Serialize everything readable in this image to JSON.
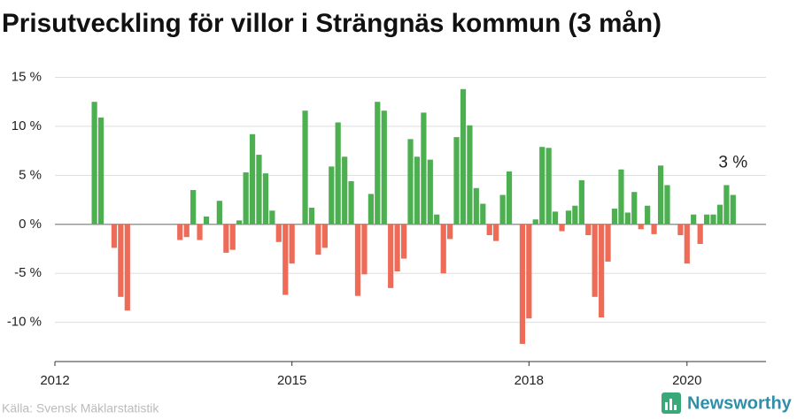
{
  "chart_data": {
    "type": "bar",
    "title": "Prisutveckling för villor i Strängnäs kommun (3 mån)",
    "x": [
      2012.5,
      2012.583,
      2012.667,
      2012.75,
      2012.833,
      2012.917,
      2013.0,
      2013.083,
      2013.167,
      2013.25,
      2013.333,
      2013.417,
      2013.5,
      2013.583,
      2013.667,
      2013.75,
      2013.833,
      2013.917,
      2014.0,
      2014.083,
      2014.167,
      2014.25,
      2014.333,
      2014.417,
      2014.5,
      2014.583,
      2014.667,
      2014.75,
      2014.833,
      2014.917,
      2015.0,
      2015.083,
      2015.167,
      2015.25,
      2015.333,
      2015.417,
      2015.5,
      2015.583,
      2015.667,
      2015.75,
      2015.833,
      2015.917,
      2016.0,
      2016.083,
      2016.167,
      2016.25,
      2016.333,
      2016.417,
      2016.5,
      2016.583,
      2016.667,
      2016.75,
      2016.833,
      2016.917,
      2017.0,
      2017.083,
      2017.167,
      2017.25,
      2017.333,
      2017.417,
      2017.5,
      2017.583,
      2017.667,
      2017.75,
      2017.833,
      2017.917,
      2018.0,
      2018.083,
      2018.167,
      2018.25,
      2018.333,
      2018.417,
      2018.5,
      2018.583,
      2018.667,
      2018.75,
      2018.833,
      2018.917,
      2019.0,
      2019.083,
      2019.167,
      2019.25,
      2019.333,
      2019.417,
      2019.5,
      2019.583,
      2019.667,
      2019.75,
      2019.833,
      2019.917,
      2020.0,
      2020.083,
      2020.167,
      2020.25,
      2020.333,
      2020.417,
      2020.5,
      2020.583
    ],
    "values": [
      12.5,
      10.9,
      null,
      -2.4,
      -7.4,
      -8.8,
      null,
      null,
      null,
      null,
      null,
      null,
      null,
      -1.6,
      -1.3,
      3.5,
      -1.6,
      0.8,
      null,
      2.4,
      -2.9,
      -2.6,
      0.4,
      5.3,
      9.2,
      7.1,
      5.2,
      1.4,
      -1.8,
      -7.2,
      -4.0,
      null,
      11.6,
      1.7,
      -3.1,
      -2.4,
      5.9,
      10.4,
      6.9,
      4.4,
      -7.3,
      -5.1,
      3.1,
      12.5,
      11.6,
      -6.5,
      -4.8,
      -3.5,
      8.7,
      6.9,
      11.4,
      6.6,
      1.0,
      -5.0,
      -1.5,
      8.9,
      13.8,
      10.1,
      3.7,
      2.1,
      -1.1,
      -1.7,
      3.0,
      5.4,
      null,
      -12.2,
      -9.6,
      0.5,
      7.9,
      7.8,
      1.3,
      -0.7,
      1.4,
      1.9,
      4.5,
      -1.1,
      -7.4,
      -9.5,
      -3.8,
      1.6,
      5.6,
      1.2,
      3.3,
      -0.5,
      1.9,
      -1.0,
      6.0,
      4.0,
      null,
      -1.1,
      -4.0,
      1.0,
      -2.0,
      1.0,
      1.0,
      2.0,
      4.0,
      3.0
    ],
    "positive_color": "#4caf50",
    "negative_color": "#ee6b58",
    "xlim": [
      2012,
      2021
    ],
    "xticks": [
      2012,
      2015,
      2018,
      2020
    ],
    "ylim": [
      -14,
      16
    ],
    "yticks": [
      {
        "value": -10,
        "label": "-10 %"
      },
      {
        "value": -5,
        "label": "-5 %"
      },
      {
        "value": 0,
        "label": "0 %"
      },
      {
        "value": 5,
        "label": "5 %"
      },
      {
        "value": 10,
        "label": "10 %"
      },
      {
        "value": 15,
        "label": "15 %"
      }
    ],
    "grid": true,
    "annotation": "3 %",
    "source": "Källa: Svensk Mäklarstatistik",
    "logo": "Newsworthy"
  }
}
